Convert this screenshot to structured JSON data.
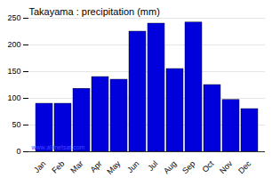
{
  "chart_data": {
    "type": "bar",
    "title": "Takayama : precipitation (mm)",
    "categories": [
      "Jan",
      "Feb",
      "Mar",
      "Apr",
      "May",
      "Jun",
      "Jul",
      "Aug",
      "Sep",
      "Oct",
      "Nov",
      "Dec"
    ],
    "values": [
      90,
      90,
      118,
      140,
      135,
      225,
      240,
      155,
      242,
      125,
      97,
      80
    ],
    "color": "#0000dd",
    "ylim": [
      0,
      250
    ],
    "yticks": [
      0,
      50,
      100,
      150,
      200,
      250
    ],
    "grid": true,
    "annotations": [
      {
        "text": "www.allmetsat.com"
      }
    ]
  }
}
